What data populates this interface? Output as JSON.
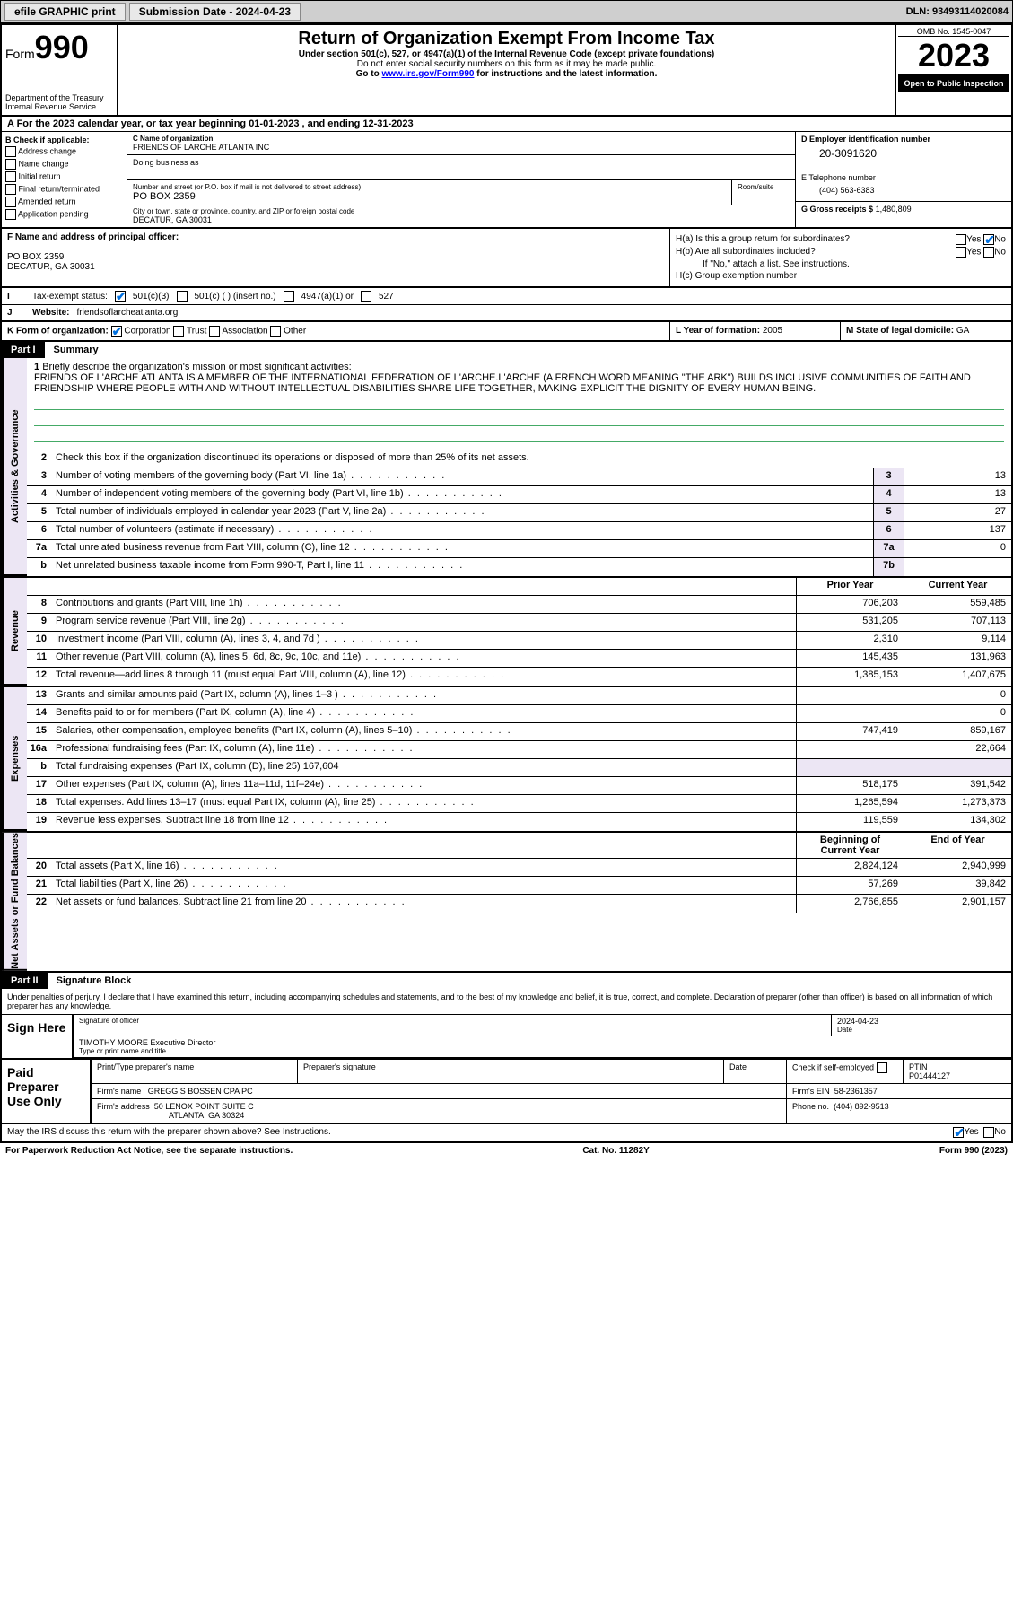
{
  "topbar": {
    "efile": "efile GRAPHIC print",
    "submission_label": "Submission Date - 2024-04-23",
    "dln": "DLN: 93493114020084"
  },
  "header": {
    "form_word": "Form",
    "form_num": "990",
    "dept": "Department of the Treasury",
    "irs": "Internal Revenue Service",
    "title": "Return of Organization Exempt From Income Tax",
    "sub": "Under section 501(c), 527, or 4947(a)(1) of the Internal Revenue Code (except private foundations)",
    "note1": "Do not enter social security numbers on this form as it may be made public.",
    "note2_pre": "Go to ",
    "note2_link": "www.irs.gov/Form990",
    "note2_post": " for instructions and the latest information.",
    "omb": "OMB No. 1545-0047",
    "year": "2023",
    "pub": "Open to Public Inspection"
  },
  "row_a": "A For the 2023 calendar year, or tax year beginning 01-01-2023   , and ending 12-31-2023",
  "section_b": {
    "label": "B Check if applicable:",
    "opts": [
      "Address change",
      "Name change",
      "Initial return",
      "Final return/terminated",
      "Amended return",
      "Application pending"
    ]
  },
  "section_c": {
    "lbl_name": "C Name of organization",
    "org_name": "FRIENDS OF LARCHE ATLANTA INC",
    "dba_lbl": "Doing business as",
    "addr_lbl": "Number and street (or P.O. box if mail is not delivered to street address)",
    "room_lbl": "Room/suite",
    "addr": "PO BOX 2359",
    "city_lbl": "City or town, state or province, country, and ZIP or foreign postal code",
    "city": "DECATUR, GA  30031"
  },
  "section_d": {
    "ein_lbl": "D Employer identification number",
    "ein": "20-3091620",
    "tel_lbl": "E Telephone number",
    "tel": "(404) 563-6383",
    "gross_lbl": "G Gross receipts $",
    "gross": "1,480,809"
  },
  "section_f": {
    "lbl": "F Name and address of principal officer:",
    "addr1": "PO BOX 2359",
    "addr2": "DECATUR, GA  30031"
  },
  "section_h": {
    "ha": "H(a)  Is this a group return for subordinates?",
    "hb": "H(b)  Are all subordinates included?",
    "hb_note": "If \"No,\" attach a list. See instructions.",
    "hc": "H(c)  Group exemption number",
    "yes": "Yes",
    "no": "No"
  },
  "row_i": {
    "lbl": "I",
    "tax_status": "Tax-exempt status:",
    "c3": "501(c)(3)",
    "c_insert": "501(c) (  ) (insert no.)",
    "a1": "4947(a)(1) or",
    "s527": "527"
  },
  "row_j": {
    "lbl": "J",
    "website_lbl": "Website:",
    "website": "friendsoflarcheatlanta.org"
  },
  "row_k": {
    "lbl": "K Form of organization:",
    "corp": "Corporation",
    "trust": "Trust",
    "assoc": "Association",
    "other": "Other"
  },
  "row_l": {
    "lbl": "L Year of formation:",
    "val": "2005"
  },
  "row_m": {
    "lbl": "M State of legal domicile:",
    "val": "GA"
  },
  "part1": {
    "num": "Part I",
    "title": "Summary"
  },
  "mission": {
    "num": "1",
    "lbl": "Briefly describe the organization's mission or most significant activities:",
    "text": "FRIENDS OF L'ARCHE ATLANTA IS A MEMBER OF THE INTERNATIONAL FEDERATION OF L'ARCHE.L'ARCHE (A FRENCH WORD MEANING \"THE ARK\") BUILDS INCLUSIVE COMMUNITIES OF FAITH AND FRIENDSHIP WHERE PEOPLE WITH AND WITHOUT INTELLECTUAL DISABILITIES SHARE LIFE TOGETHER, MAKING EXPLICIT THE DIGNITY OF EVERY HUMAN BEING."
  },
  "vtabs": {
    "gov": "Activities & Governance",
    "rev": "Revenue",
    "exp": "Expenses",
    "net": "Net Assets or Fund Balances"
  },
  "gov_lines": [
    {
      "n": "2",
      "d": "Check this box      if the organization discontinued its operations or disposed of more than 25% of its net assets."
    },
    {
      "n": "3",
      "d": "Number of voting members of the governing body (Part VI, line 1a)",
      "box": "3",
      "v": "13"
    },
    {
      "n": "4",
      "d": "Number of independent voting members of the governing body (Part VI, line 1b)",
      "box": "4",
      "v": "13"
    },
    {
      "n": "5",
      "d": "Total number of individuals employed in calendar year 2023 (Part V, line 2a)",
      "box": "5",
      "v": "27"
    },
    {
      "n": "6",
      "d": "Total number of volunteers (estimate if necessary)",
      "box": "6",
      "v": "137"
    },
    {
      "n": "7a",
      "d": "Total unrelated business revenue from Part VIII, column (C), line 12",
      "box": "7a",
      "v": "0"
    },
    {
      "n": "b",
      "d": "Net unrelated business taxable income from Form 990-T, Part I, line 11",
      "box": "7b",
      "v": ""
    }
  ],
  "col_headers": {
    "prior": "Prior Year",
    "current": "Current Year",
    "begin": "Beginning of Current Year",
    "end": "End of Year"
  },
  "rev_lines": [
    {
      "n": "8",
      "d": "Contributions and grants (Part VIII, line 1h)",
      "p": "706,203",
      "c": "559,485"
    },
    {
      "n": "9",
      "d": "Program service revenue (Part VIII, line 2g)",
      "p": "531,205",
      "c": "707,113"
    },
    {
      "n": "10",
      "d": "Investment income (Part VIII, column (A), lines 3, 4, and 7d )",
      "p": "2,310",
      "c": "9,114"
    },
    {
      "n": "11",
      "d": "Other revenue (Part VIII, column (A), lines 5, 6d, 8c, 9c, 10c, and 11e)",
      "p": "145,435",
      "c": "131,963"
    },
    {
      "n": "12",
      "d": "Total revenue—add lines 8 through 11 (must equal Part VIII, column (A), line 12)",
      "p": "1,385,153",
      "c": "1,407,675"
    }
  ],
  "exp_lines": [
    {
      "n": "13",
      "d": "Grants and similar amounts paid (Part IX, column (A), lines 1–3 )",
      "p": "",
      "c": "0"
    },
    {
      "n": "14",
      "d": "Benefits paid to or for members (Part IX, column (A), line 4)",
      "p": "",
      "c": "0"
    },
    {
      "n": "15",
      "d": "Salaries, other compensation, employee benefits (Part IX, column (A), lines 5–10)",
      "p": "747,419",
      "c": "859,167"
    },
    {
      "n": "16a",
      "d": "Professional fundraising fees (Part IX, column (A), line 11e)",
      "p": "",
      "c": "22,664"
    },
    {
      "n": "b",
      "d": "Total fundraising expenses (Part IX, column (D), line 25) 167,604",
      "p": "SHADE",
      "c": "SHADE"
    },
    {
      "n": "17",
      "d": "Other expenses (Part IX, column (A), lines 11a–11d, 11f–24e)",
      "p": "518,175",
      "c": "391,542"
    },
    {
      "n": "18",
      "d": "Total expenses. Add lines 13–17 (must equal Part IX, column (A), line 25)",
      "p": "1,265,594",
      "c": "1,273,373"
    },
    {
      "n": "19",
      "d": "Revenue less expenses. Subtract line 18 from line 12",
      "p": "119,559",
      "c": "134,302"
    }
  ],
  "net_lines": [
    {
      "n": "20",
      "d": "Total assets (Part X, line 16)",
      "p": "2,824,124",
      "c": "2,940,999"
    },
    {
      "n": "21",
      "d": "Total liabilities (Part X, line 26)",
      "p": "57,269",
      "c": "39,842"
    },
    {
      "n": "22",
      "d": "Net assets or fund balances. Subtract line 21 from line 20",
      "p": "2,766,855",
      "c": "2,901,157"
    }
  ],
  "part2": {
    "num": "Part II",
    "title": "Signature Block"
  },
  "declaration": "Under penalties of perjury, I declare that I have examined this return, including accompanying schedules and statements, and to the best of my knowledge and belief, it is true, correct, and complete. Declaration of preparer (other than officer) is based on all information of which preparer has any knowledge.",
  "sign": {
    "here": "Sign Here",
    "sig_lbl": "Signature of officer",
    "date_lbl": "Date",
    "date": "2024-04-23",
    "name": "TIMOTHY MOORE  Executive Director",
    "name_lbl": "Type or print name and title"
  },
  "preparer": {
    "title": "Paid Preparer Use Only",
    "print_lbl": "Print/Type preparer's name",
    "sig_lbl": "Preparer's signature",
    "date_lbl": "Date",
    "check_lbl": "Check      if self-employed",
    "ptin_lbl": "PTIN",
    "ptin": "P01444127",
    "firm_name_lbl": "Firm's name",
    "firm_name": "GREGG S BOSSEN CPA PC",
    "firm_ein_lbl": "Firm's EIN",
    "firm_ein": "58-2361357",
    "firm_addr_lbl": "Firm's address",
    "firm_addr": "50 LENOX POINT SUITE C",
    "firm_city": "ATLANTA, GA  30324",
    "phone_lbl": "Phone no.",
    "phone": "(404) 892-9513"
  },
  "discuss": {
    "text": "May the IRS discuss this return with the preparer shown above? See Instructions.",
    "yes": "Yes",
    "no": "No"
  },
  "footer": {
    "pra": "For Paperwork Reduction Act Notice, see the separate instructions.",
    "cat": "Cat. No. 11282Y",
    "form": "Form 990 (2023)"
  }
}
